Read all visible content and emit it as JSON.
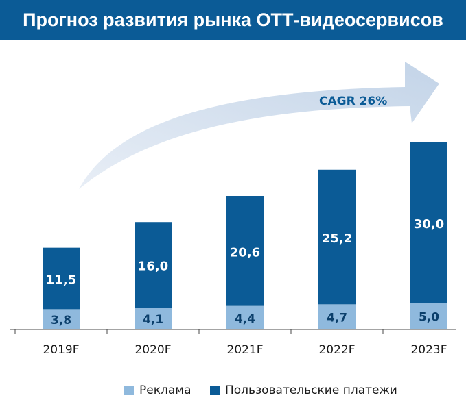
{
  "header": {
    "title": "Прогноз развития рынка ОТТ-видеосервисов"
  },
  "colors": {
    "ads": "#8fb9dd",
    "payments": "#0b5b96",
    "arrow": "#cfdcec"
  },
  "chart_data": {
    "type": "bar",
    "stacked": true,
    "categories": [
      "2019F",
      "2020F",
      "2021F",
      "2022F",
      "2023F"
    ],
    "series": [
      {
        "name": "Реклама",
        "values": [
          3.8,
          4.1,
          4.4,
          4.7,
          5.0
        ],
        "labels": [
          "3,8",
          "4,1",
          "4,4",
          "4,7",
          "5,0"
        ]
      },
      {
        "name": "Пользовательские платежи",
        "values": [
          11.5,
          16.0,
          20.6,
          25.2,
          30.0
        ],
        "labels": [
          "11,5",
          "16,0",
          "20,6",
          "25,2",
          "30,0"
        ]
      }
    ],
    "annotation": "CAGR 26%",
    "legend_position": "bottom",
    "grid": false
  }
}
